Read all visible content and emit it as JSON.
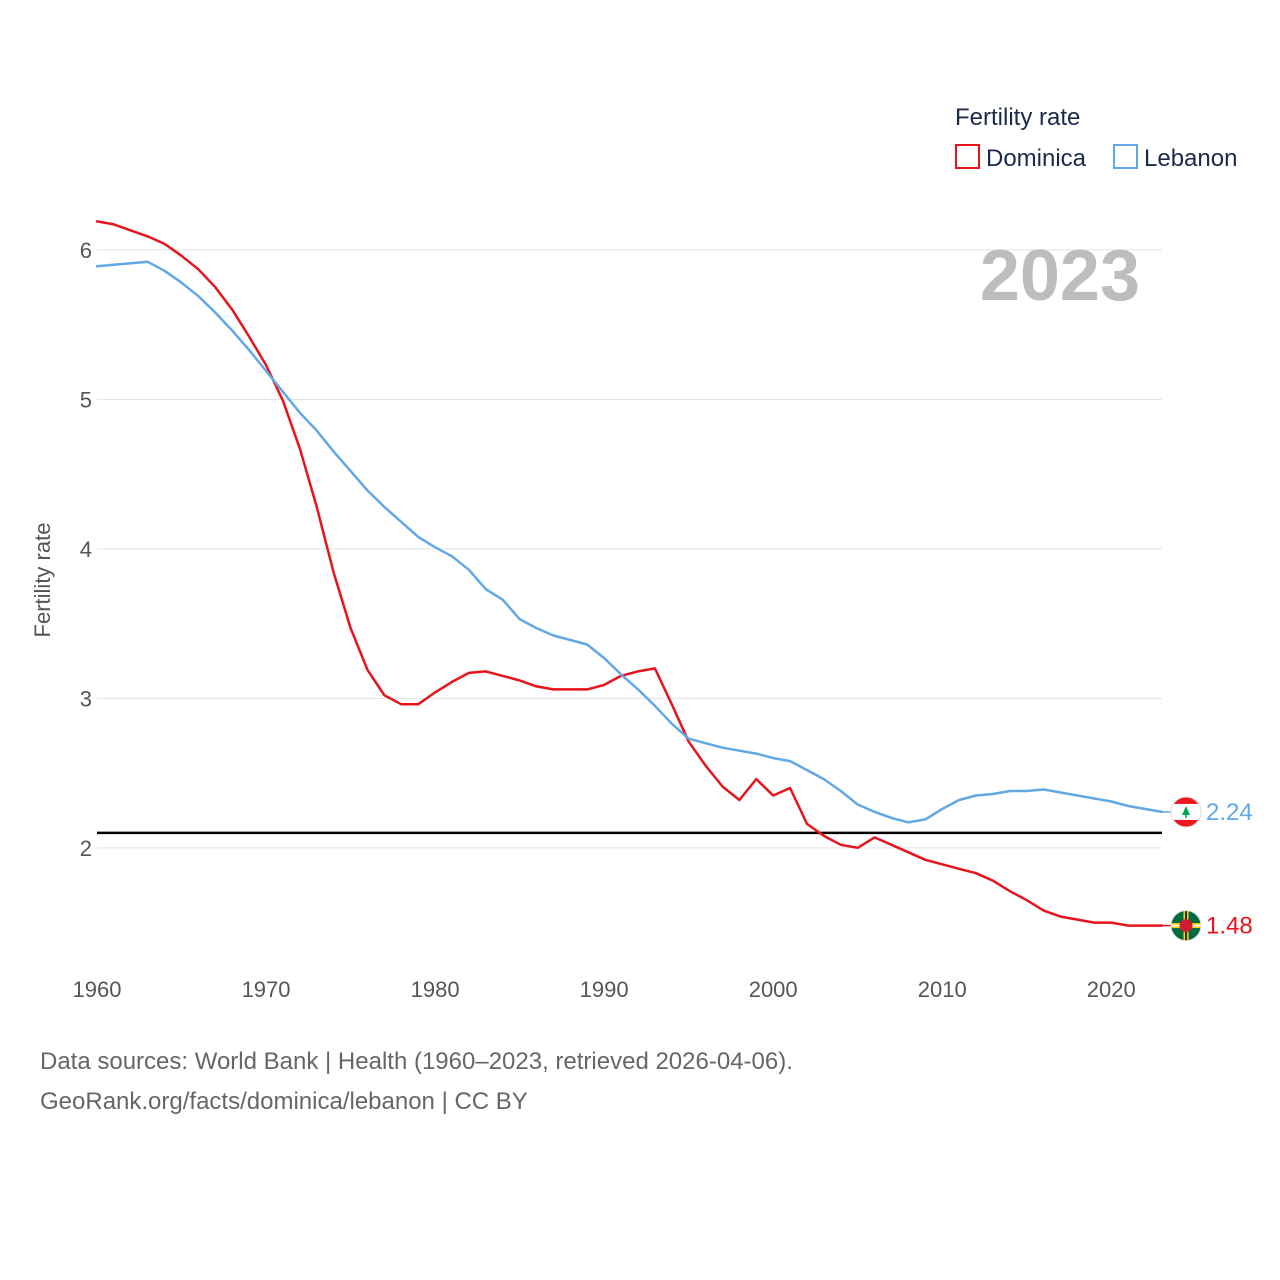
{
  "chart_data": {
    "type": "line",
    "title": "",
    "xlabel": "",
    "ylabel": "Fertility rate",
    "xlim": [
      1960,
      2023
    ],
    "ylim": [
      1.35,
      6.3
    ],
    "xticks": [
      1960,
      1970,
      1980,
      1990,
      2000,
      2010,
      2020
    ],
    "yticks": [
      2,
      3,
      4,
      5,
      6
    ],
    "grid": true,
    "reference_line": 2.1,
    "year_label": "2023",
    "legend": {
      "title": "Fertility rate",
      "placement": "top-right"
    },
    "x": [
      1960,
      1961,
      1962,
      1963,
      1964,
      1965,
      1966,
      1967,
      1968,
      1969,
      1970,
      1971,
      1972,
      1973,
      1974,
      1975,
      1976,
      1977,
      1978,
      1979,
      1980,
      1981,
      1982,
      1983,
      1984,
      1985,
      1986,
      1987,
      1988,
      1989,
      1990,
      1991,
      1992,
      1993,
      1994,
      1995,
      1996,
      1997,
      1998,
      1999,
      2000,
      2001,
      2002,
      2003,
      2004,
      2005,
      2006,
      2007,
      2008,
      2009,
      2010,
      2011,
      2012,
      2013,
      2014,
      2015,
      2016,
      2017,
      2018,
      2019,
      2020,
      2021,
      2022,
      2023
    ],
    "series": [
      {
        "name": "Dominica",
        "color": "#e8141c",
        "end_value": "1.48",
        "flag": "dominica-flag",
        "values": [
          6.19,
          6.17,
          6.13,
          6.09,
          6.04,
          5.96,
          5.87,
          5.75,
          5.6,
          5.42,
          5.23,
          4.99,
          4.67,
          4.28,
          3.84,
          3.47,
          3.19,
          3.02,
          2.96,
          2.96,
          3.04,
          3.11,
          3.17,
          3.18,
          3.15,
          3.12,
          3.08,
          3.06,
          3.06,
          3.06,
          3.09,
          3.15,
          3.18,
          3.2,
          2.96,
          2.71,
          2.55,
          2.41,
          2.32,
          2.46,
          2.35,
          2.4,
          2.16,
          2.08,
          2.02,
          2.0,
          2.07,
          2.02,
          1.97,
          1.92,
          1.89,
          1.86,
          1.83,
          1.78,
          1.71,
          1.65,
          1.58,
          1.54,
          1.52,
          1.5,
          1.5,
          1.48,
          1.48,
          1.48
        ]
      },
      {
        "name": "Lebanon",
        "color": "#62a8e5",
        "end_value": "2.24",
        "flag": "lebanon-flag",
        "values": [
          5.89,
          5.9,
          5.91,
          5.92,
          5.86,
          5.78,
          5.69,
          5.58,
          5.46,
          5.33,
          5.19,
          5.05,
          4.91,
          4.79,
          4.65,
          4.52,
          4.39,
          4.28,
          4.18,
          4.08,
          4.01,
          3.95,
          3.86,
          3.73,
          3.66,
          3.53,
          3.47,
          3.42,
          3.39,
          3.36,
          3.27,
          3.16,
          3.06,
          2.95,
          2.83,
          2.73,
          2.7,
          2.67,
          2.65,
          2.63,
          2.6,
          2.58,
          2.52,
          2.46,
          2.38,
          2.29,
          2.24,
          2.2,
          2.17,
          2.19,
          2.26,
          2.32,
          2.35,
          2.36,
          2.38,
          2.38,
          2.39,
          2.37,
          2.35,
          2.33,
          2.31,
          2.28,
          2.26,
          2.24
        ]
      }
    ]
  },
  "footer": {
    "line1": "Data sources: World Bank | Health (1960–2023, retrieved 2026-04-06).",
    "line2": "GeoRank.org/facts/dominica/lebanon | CC BY"
  }
}
